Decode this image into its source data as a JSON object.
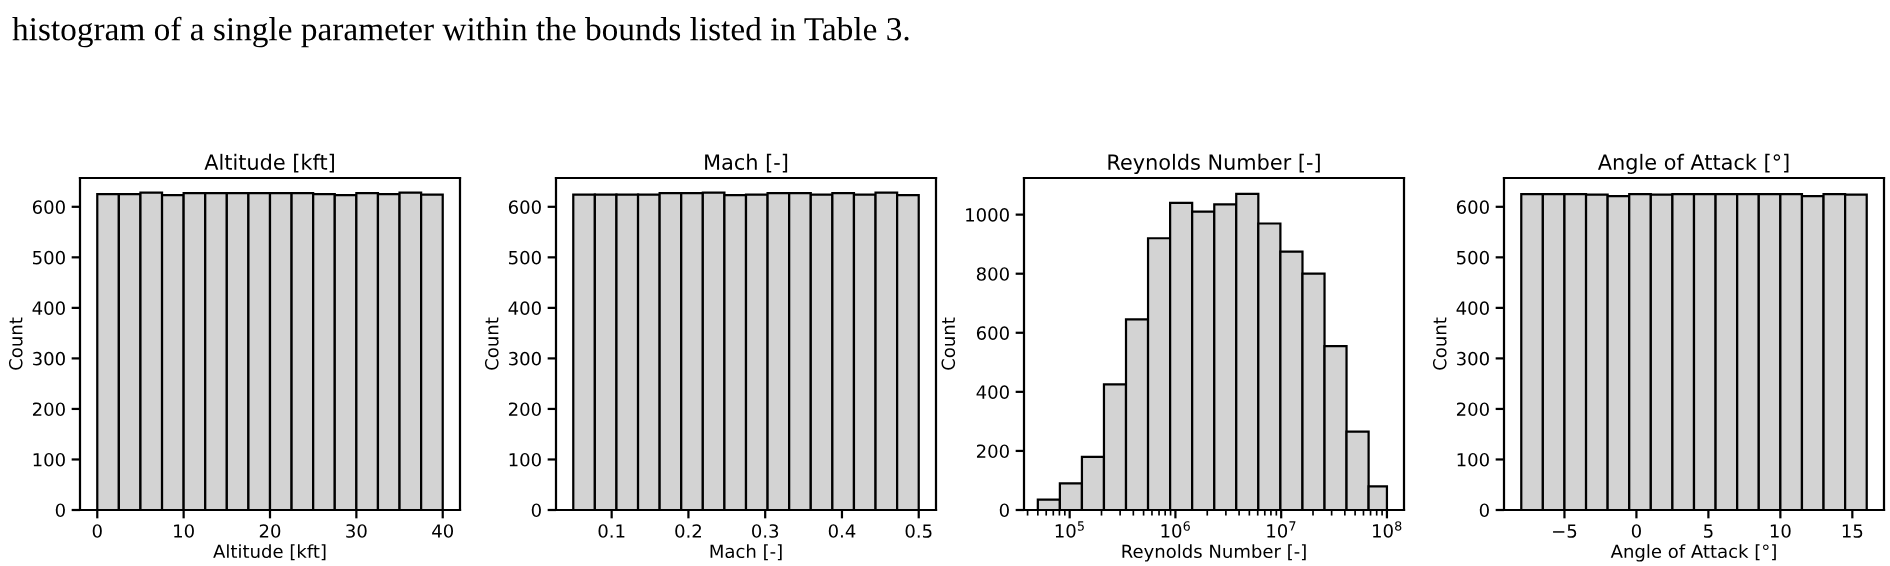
{
  "chart_data": [
    {
      "type": "histogram",
      "title": "Altitude [kft]",
      "xlabel": "Altitude [kft]",
      "ylabel": "Count",
      "annotations": [
        "histogram of a single parameter within the bounds listed in Table 3."
      ],
      "bins": [
        0,
        2.5,
        5,
        7.5,
        10,
        12.5,
        15,
        17.5,
        20,
        22.5,
        25,
        27.5,
        30,
        32.5,
        35,
        37.5,
        40
      ],
      "values": [
        625,
        625,
        628,
        623,
        627,
        627,
        627,
        627,
        627,
        627,
        625,
        623,
        627,
        625,
        628,
        624
      ],
      "color": "#d3d3d3",
      "xlim": [
        -2,
        42
      ],
      "xticks": [
        0,
        10,
        20,
        30,
        40
      ],
      "ylim": [
        0,
        657
      ],
      "yticks": [
        0,
        100,
        200,
        300,
        400,
        500,
        600
      ],
      "grid": false
    },
    {
      "type": "histogram",
      "title": "Mach [-]",
      "xlabel": "Mach [-]",
      "ylabel": "Count",
      "bins": [
        0.05,
        0.078125,
        0.10625,
        0.134375,
        0.1625,
        0.190625,
        0.21875,
        0.246875,
        0.275,
        0.303125,
        0.33125,
        0.359375,
        0.3875,
        0.415625,
        0.44375,
        0.471875,
        0.5
      ],
      "values": [
        624,
        624,
        624,
        624,
        627,
        627,
        628,
        623,
        624,
        627,
        627,
        624,
        627,
        624,
        628,
        623
      ],
      "color": "#d3d3d3",
      "xlim": [
        0.0275,
        0.5225
      ],
      "xticks": [
        0.1,
        0.2,
        0.3,
        0.4,
        0.5
      ],
      "ylim": [
        0,
        657
      ],
      "yticks": [
        0,
        100,
        200,
        300,
        400,
        500,
        600
      ],
      "grid": false
    },
    {
      "type": "histogram",
      "title": "Reynolds Number [-]",
      "xlabel": "Reynolds Number [-]",
      "ylabel": "Count",
      "log": "x",
      "bins": [
        50000,
        80800,
        130600,
        211000,
        341000,
        551000,
        891000,
        1440000,
        2330000,
        3760000,
        6080000,
        9830000,
        15900000,
        25700000,
        41500000,
        67100000,
        100000000
      ],
      "values": [
        35,
        90,
        180,
        425,
        645,
        920,
        1040,
        1010,
        1035,
        1070,
        970,
        875,
        800,
        555,
        265,
        80
      ],
      "color": "#d3d3d3",
      "xlim": [
        37000,
        145000000
      ],
      "xticks": [
        {
          "value": 100000,
          "label": "10$^{5}$"
        },
        {
          "value": 1000000,
          "label": "10$^{6}$"
        },
        {
          "value": 10000000,
          "label": "10$^{7}$"
        },
        {
          "value": 100000000,
          "label": "10$^{8}$"
        }
      ],
      "ylim": [
        0,
        1124
      ],
      "yticks": [
        0,
        200,
        400,
        600,
        800,
        1000
      ],
      "grid": false
    },
    {
      "type": "histogram",
      "title": "Angle of Attack [°]",
      "xlabel": "Angle of Attack [°]",
      "ylabel": "Count",
      "bins": [
        -8,
        -6.5,
        -5,
        -3.5,
        -2,
        -0.5,
        1,
        2.5,
        4,
        5.5,
        7,
        8.5,
        10,
        11.5,
        13,
        14.5,
        16
      ],
      "values": [
        625,
        625,
        625,
        624,
        621,
        625,
        624,
        625,
        625,
        625,
        625,
        625,
        625,
        621,
        625,
        624
      ],
      "color": "#d3d3d3",
      "xlim": [
        -9.2,
        17.2
      ],
      "xticks": [
        {
          "value": -5,
          "label": "−5"
        },
        0,
        5,
        10,
        15
      ],
      "ylim": [
        0,
        657
      ],
      "yticks": [
        0,
        100,
        200,
        300,
        400,
        500,
        600
      ],
      "grid": false
    }
  ]
}
